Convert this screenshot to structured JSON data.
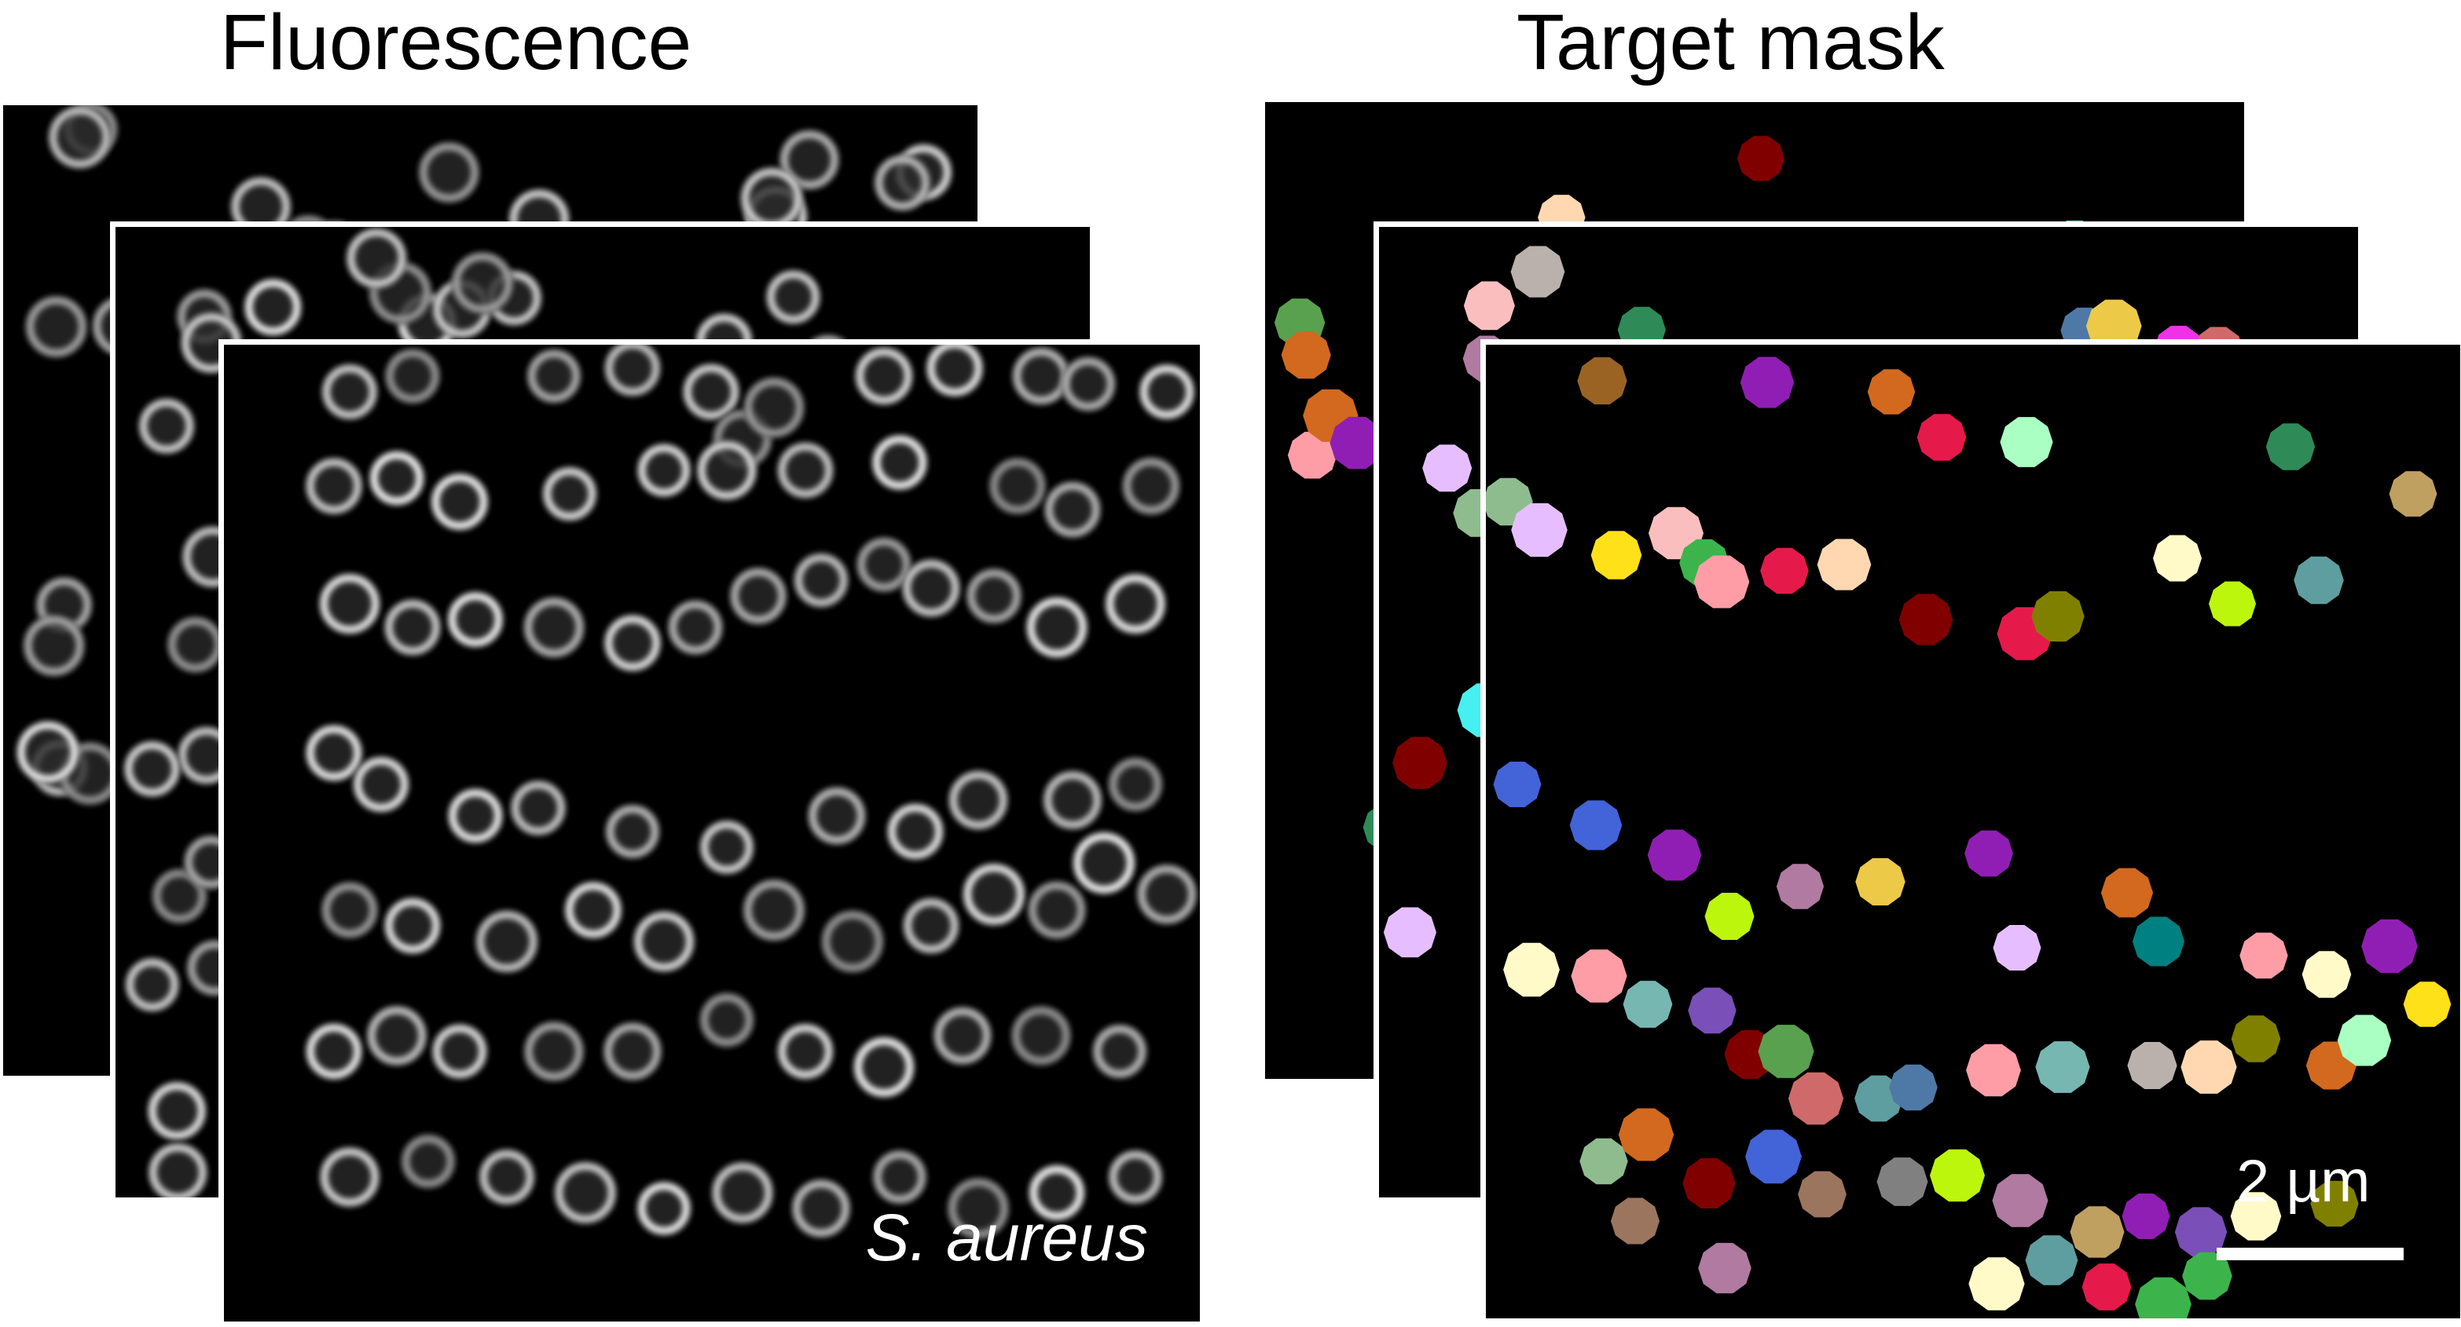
{
  "titles": {
    "fluorescence": "Fluorescence",
    "mask": "Target mask"
  },
  "fluorescence_panel": {
    "species_label": "S. aureus"
  },
  "mask_panel": {
    "scale_bar_label": "2 µm"
  },
  "colors": {
    "background": "#000000",
    "frame": "#ffffff",
    "cell_glow": "#e8e8e8"
  }
}
